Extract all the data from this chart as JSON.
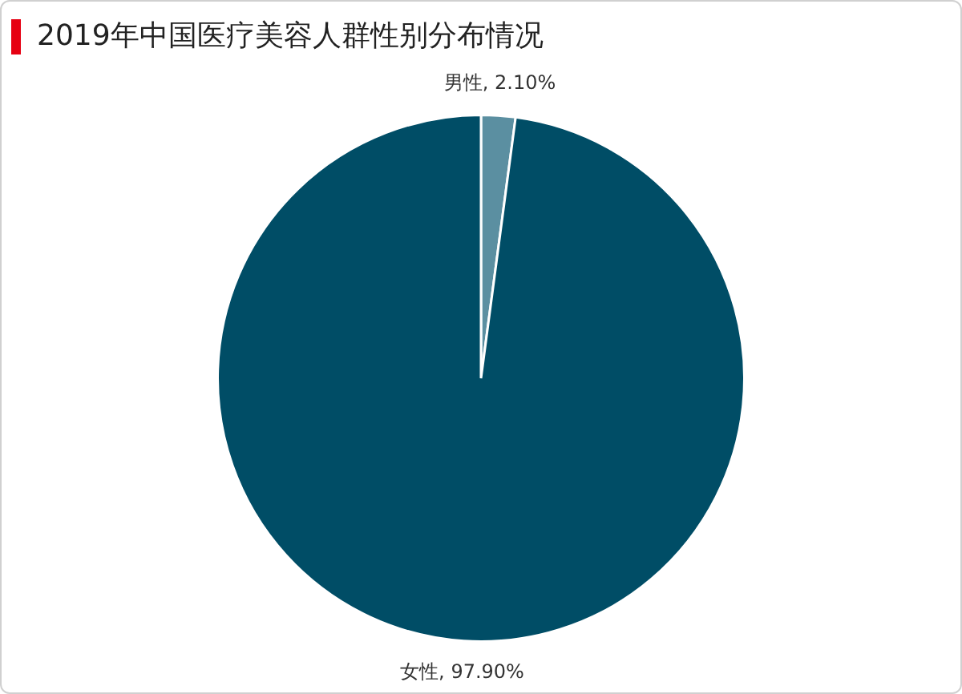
{
  "chart_data": {
    "type": "pie",
    "title": "2019年中国医疗美容人群性别分布情况",
    "categories": [
      "男性",
      "女性"
    ],
    "values": [
      2.1,
      97.9
    ],
    "colors": [
      "#5b8fa1",
      "#004d66"
    ],
    "value_labels": [
      "2.10%",
      "97.90%"
    ],
    "legend": false
  }
}
